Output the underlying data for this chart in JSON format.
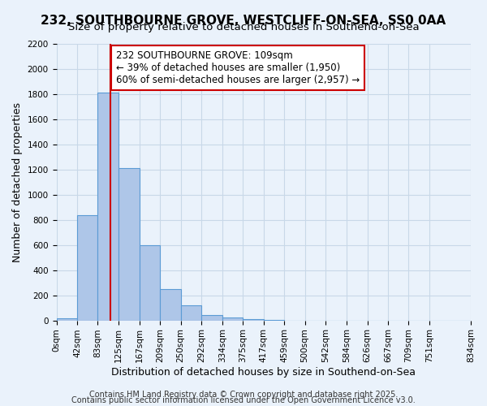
{
  "title": "232, SOUTHBOURNE GROVE, WESTCLIFF-ON-SEA, SS0 0AA",
  "subtitle": "Size of property relative to detached houses in Southend-on-Sea",
  "xlabel": "Distribution of detached houses by size in Southend-on-Sea",
  "ylabel": "Number of detached properties",
  "bar_values": [
    20,
    840,
    1810,
    1210,
    600,
    250,
    120,
    45,
    25,
    10,
    2,
    0,
    0,
    0,
    0,
    0,
    0,
    0,
    0
  ],
  "bin_edges": [
    0,
    42,
    83,
    125,
    167,
    209,
    250,
    292,
    334,
    375,
    417,
    459,
    500,
    542,
    584,
    626,
    667,
    709,
    751,
    834
  ],
  "tick_labels": [
    "0sqm",
    "42sqm",
    "83sqm",
    "125sqm",
    "167sqm",
    "209sqm",
    "250sqm",
    "292sqm",
    "334sqm",
    "375sqm",
    "417sqm",
    "459sqm",
    "500sqm",
    "542sqm",
    "584sqm",
    "626sqm",
    "667sqm",
    "709sqm",
    "751sqm",
    "834sqm"
  ],
  "ylim": [
    0,
    2200
  ],
  "yticks": [
    0,
    200,
    400,
    600,
    800,
    1000,
    1200,
    1400,
    1600,
    1800,
    2000,
    2200
  ],
  "bar_color": "#aec6e8",
  "bar_edge_color": "#5b9bd5",
  "grid_color": "#c8d8e8",
  "background_color": "#eaf2fb",
  "vline_x": 109,
  "vline_color": "#cc0000",
  "annotation_text": "232 SOUTHBOURNE GROVE: 109sqm\n← 39% of detached houses are smaller (1,950)\n60% of semi-detached houses are larger (2,957) →",
  "annotation_box_color": "#ffffff",
  "annotation_box_edge": "#cc0000",
  "footer1": "Contains HM Land Registry data © Crown copyright and database right 2025.",
  "footer2": "Contains public sector information licensed under the Open Government Licence v3.0.",
  "title_fontsize": 11,
  "subtitle_fontsize": 9.5,
  "xlabel_fontsize": 9,
  "ylabel_fontsize": 9,
  "tick_fontsize": 7.5,
  "annotation_fontsize": 8.5,
  "footer_fontsize": 7
}
